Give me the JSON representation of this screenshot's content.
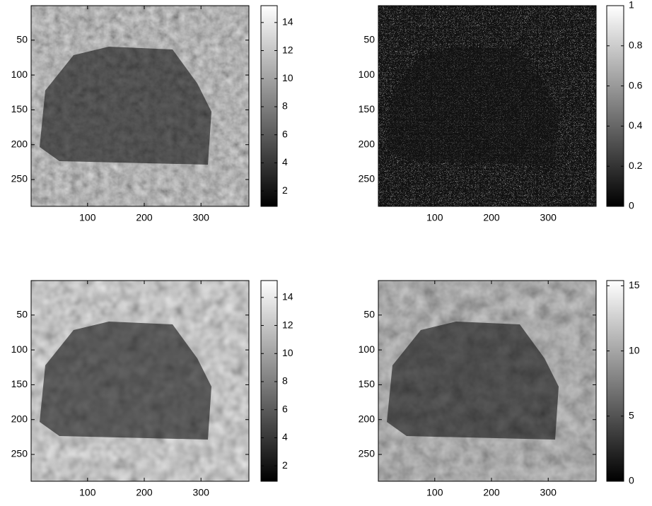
{
  "chart_data": [
    {
      "type": "image",
      "colormap": "gray",
      "y_reversed": true,
      "xlim": [
        0.5,
        384.5
      ],
      "ylim": [
        0.5,
        288.5
      ],
      "xticks": [
        100,
        200,
        300
      ],
      "yticks": [
        50,
        100,
        150,
        200,
        250
      ],
      "clim": [
        0.9,
        15.2
      ],
      "cticks": [
        2,
        4,
        6,
        8,
        10,
        12,
        14
      ]
    },
    {
      "type": "image",
      "colormap": "gray",
      "y_reversed": true,
      "xlim": [
        0.5,
        384.5
      ],
      "ylim": [
        0.5,
        288.5
      ],
      "xticks": [
        100,
        200,
        300
      ],
      "yticks": [
        50,
        100,
        150,
        200,
        250
      ],
      "clim": [
        0,
        1
      ],
      "cticks": [
        0,
        0.2,
        0.4,
        0.6,
        0.8,
        1
      ]
    },
    {
      "type": "image",
      "colormap": "gray",
      "y_reversed": true,
      "xlim": [
        0.5,
        384.5
      ],
      "ylim": [
        0.5,
        288.5
      ],
      "xticks": [
        100,
        200,
        300
      ],
      "yticks": [
        50,
        100,
        150,
        200,
        250
      ],
      "clim": [
        0.9,
        15.2
      ],
      "cticks": [
        2,
        4,
        6,
        8,
        10,
        12,
        14
      ]
    },
    {
      "type": "image",
      "colormap": "gray",
      "y_reversed": true,
      "xlim": [
        0.5,
        384.5
      ],
      "ylim": [
        0.5,
        288.5
      ],
      "xticks": [
        100,
        200,
        300
      ],
      "yticks": [
        50,
        100,
        150,
        200,
        250
      ],
      "clim": [
        0,
        15.4
      ],
      "cticks": [
        0,
        5,
        10,
        15
      ]
    }
  ]
}
